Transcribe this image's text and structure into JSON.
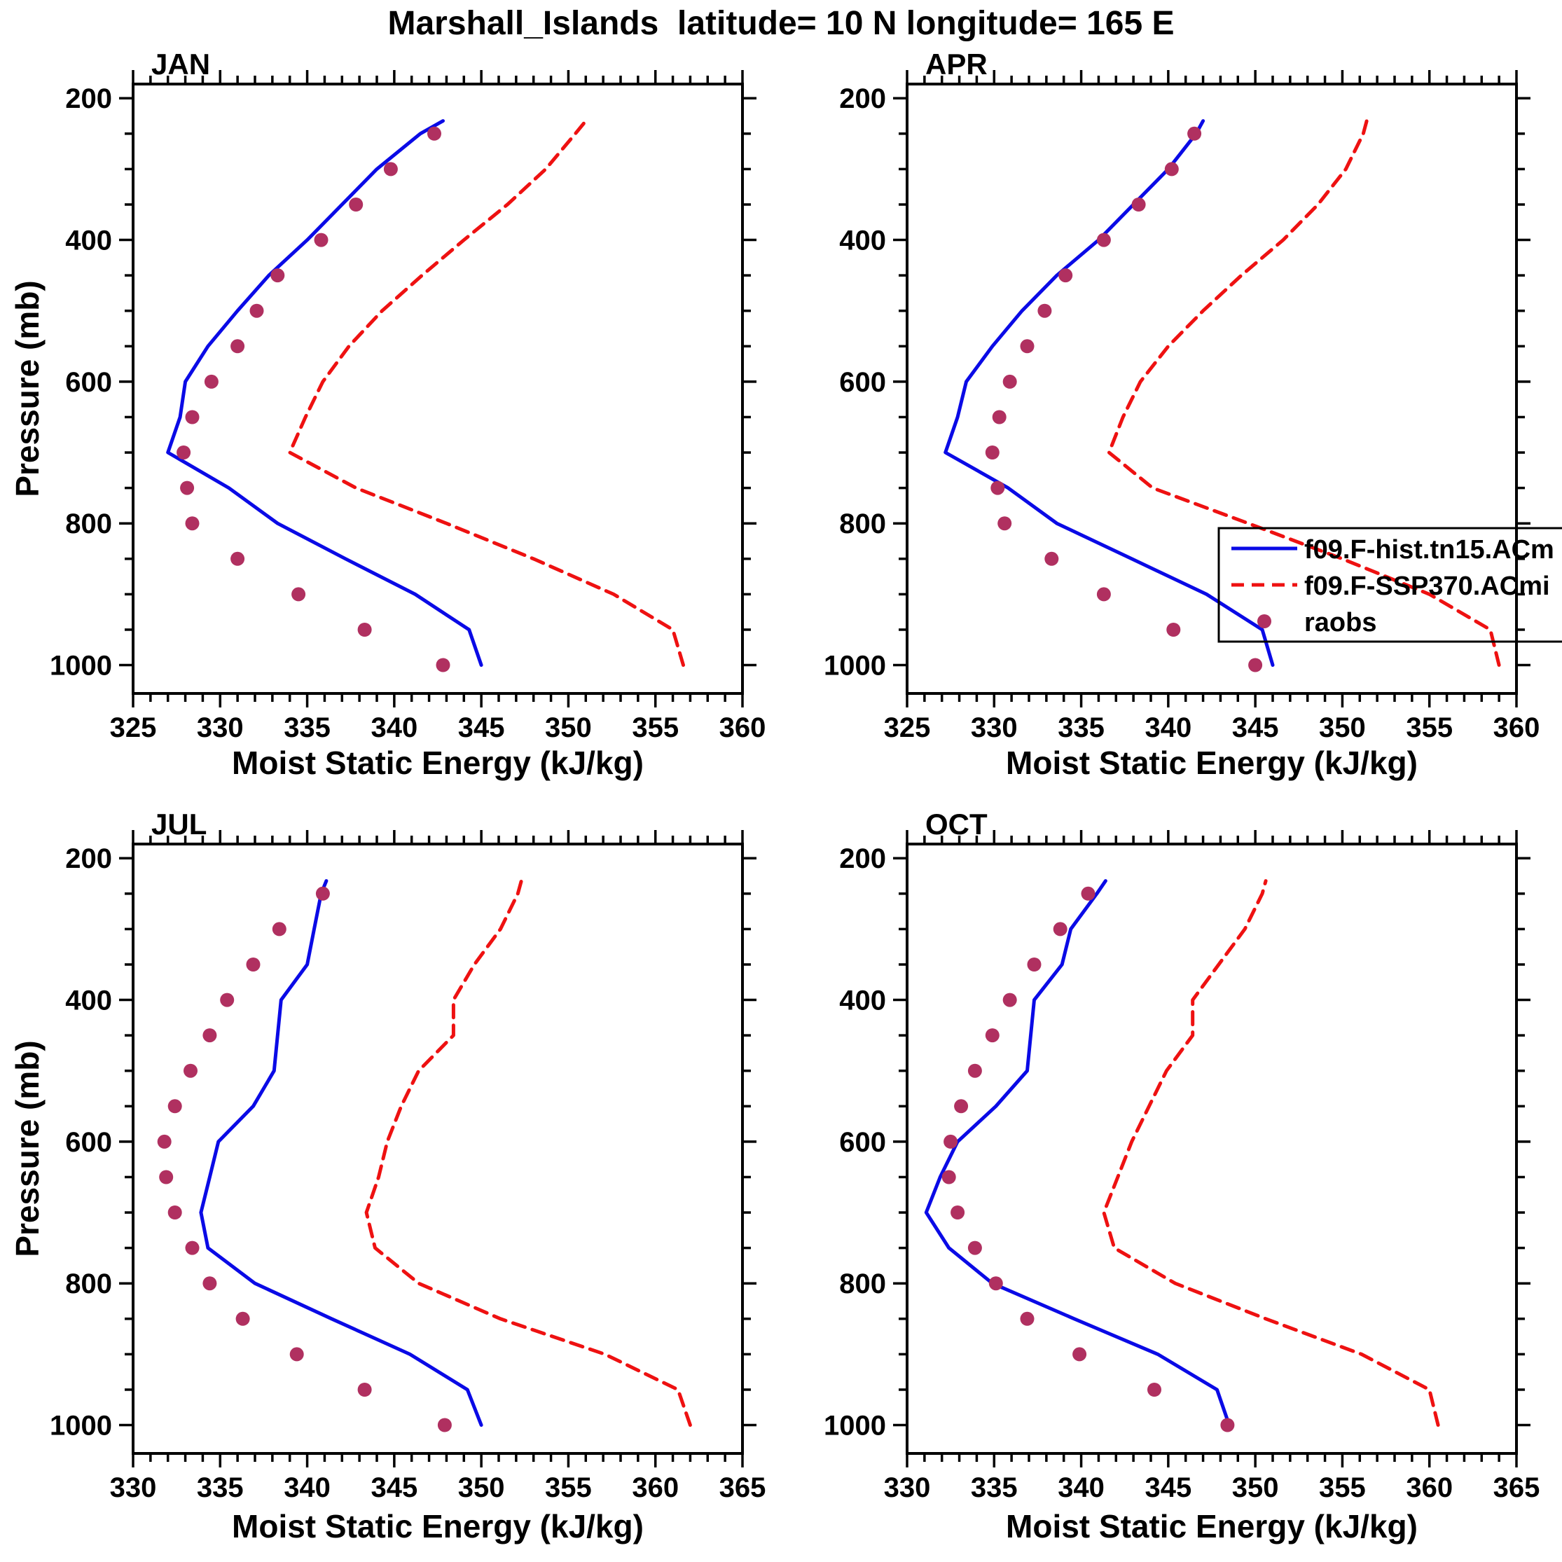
{
  "title": "Marshall_Islands  latitude= 10 N longitude= 165 E",
  "colors": {
    "hist": "#0A0AE6",
    "ssp": "#EE1111",
    "raobs": "#B03060",
    "axis": "#000000",
    "background": "#FFFFFF"
  },
  "axes": {
    "ylabel": "Pressure (mb)",
    "xlabel": "Moist Static Energy (kJ/kg)",
    "ylim": [
      200,
      1000
    ],
    "y_major_ticks": [
      200,
      400,
      600,
      800,
      1000
    ],
    "y_minor_step": 50,
    "x_major_step": 5,
    "x_minor_step": 1,
    "y_axis_inverted": true
  },
  "legend": {
    "entries": [
      {
        "label": "f09.F-hist.tn15.ACm",
        "series": "hist",
        "style": "solid-line"
      },
      {
        "label": "f09.F-SSP370.ACmi",
        "series": "ssp",
        "style": "dashed-line"
      },
      {
        "label": "raobs",
        "series": "raobs",
        "style": "dot"
      }
    ]
  },
  "chart_data": [
    {
      "type": "line",
      "panel": "JAN",
      "xlim": [
        325,
        360
      ],
      "x_major_ticks": [
        325,
        330,
        335,
        340,
        345,
        350,
        355,
        360
      ],
      "pressure_levels": [
        1000,
        950,
        900,
        850,
        800,
        750,
        700,
        650,
        600,
        550,
        500,
        450,
        400,
        350,
        300,
        250,
        232
      ],
      "series": [
        {
          "name": "f09.F-hist.tn15.ACm",
          "style": "solid",
          "color": "hist",
          "values": [
            345.0,
            344.3,
            341.2,
            337.2,
            333.3,
            330.5,
            327.0,
            327.7,
            328.0,
            329.3,
            331.0,
            332.8,
            335.0,
            337.0,
            339.0,
            341.5,
            342.8
          ]
        },
        {
          "name": "f09.F-SSP370.ACmi",
          "style": "dashed",
          "color": "ssp",
          "values": [
            356.6,
            356.0,
            352.6,
            348.0,
            343.0,
            337.8,
            334.0,
            334.9,
            335.9,
            337.4,
            339.3,
            341.6,
            344.0,
            346.5,
            348.7,
            350.4,
            351.0
          ]
        },
        {
          "name": "raobs",
          "style": "dots",
          "color": "raobs",
          "values": [
            342.8,
            338.3,
            334.5,
            331.0,
            328.4,
            328.1,
            327.9,
            328.4,
            329.5,
            331.0,
            332.1,
            333.3,
            335.8,
            337.8,
            339.8,
            342.3,
            null
          ]
        }
      ]
    },
    {
      "type": "line",
      "panel": "APR",
      "xlim": [
        325,
        360
      ],
      "x_major_ticks": [
        325,
        330,
        335,
        340,
        345,
        350,
        355,
        360
      ],
      "pressure_levels": [
        1000,
        950,
        900,
        850,
        800,
        750,
        700,
        650,
        600,
        550,
        500,
        450,
        400,
        350,
        300,
        250,
        232
      ],
      "series": [
        {
          "name": "f09.F-hist.tn15.ACm",
          "style": "solid",
          "color": "hist",
          "values": [
            346.0,
            345.4,
            342.2,
            337.9,
            333.6,
            330.8,
            327.2,
            327.9,
            328.4,
            329.9,
            331.6,
            333.6,
            336.0,
            338.0,
            340.0,
            341.6,
            342.0
          ]
        },
        {
          "name": "f09.F-SSP370.ACmi",
          "style": "dashed",
          "color": "ssp",
          "values": [
            359.0,
            358.5,
            355.0,
            350.0,
            344.6,
            339.1,
            336.6,
            337.4,
            338.4,
            340.0,
            342.0,
            344.2,
            346.6,
            348.6,
            350.2,
            351.2,
            351.4
          ]
        },
        {
          "name": "raobs",
          "style": "dots",
          "color": "raobs",
          "values": [
            345.0,
            340.3,
            336.3,
            333.3,
            330.6,
            330.2,
            329.9,
            330.3,
            330.9,
            331.9,
            332.9,
            334.1,
            336.3,
            338.3,
            340.2,
            341.5,
            null
          ]
        }
      ]
    },
    {
      "type": "line",
      "panel": "JUL",
      "xlim": [
        330,
        365
      ],
      "x_major_ticks": [
        330,
        335,
        340,
        345,
        350,
        355,
        360,
        365
      ],
      "pressure_levels": [
        1000,
        950,
        900,
        850,
        800,
        750,
        700,
        650,
        600,
        550,
        500,
        450,
        400,
        350,
        300,
        250,
        232
      ],
      "series": [
        {
          "name": "f09.F-hist.tn15.ACm",
          "style": "solid",
          "color": "hist",
          "values": [
            350.0,
            349.2,
            345.9,
            341.4,
            337.0,
            334.3,
            333.9,
            334.4,
            334.9,
            336.9,
            338.1,
            338.3,
            338.5,
            340.0,
            340.4,
            340.8,
            341.1
          ]
        },
        {
          "name": "f09.F-SSP370.ACmi",
          "style": "dashed",
          "color": "ssp",
          "values": [
            362.0,
            361.3,
            357.1,
            351.1,
            346.4,
            343.9,
            343.4,
            344.1,
            344.6,
            345.4,
            346.4,
            348.4,
            348.4,
            349.6,
            351.1,
            352.1,
            352.3
          ]
        },
        {
          "name": "raobs",
          "style": "dots",
          "color": "raobs",
          "values": [
            347.9,
            343.3,
            339.4,
            336.3,
            334.4,
            333.4,
            332.4,
            331.9,
            331.8,
            332.4,
            333.3,
            334.4,
            335.4,
            336.9,
            338.4,
            340.9,
            null
          ]
        }
      ]
    },
    {
      "type": "line",
      "panel": "OCT",
      "xlim": [
        330,
        365
      ],
      "x_major_ticks": [
        330,
        335,
        340,
        345,
        350,
        355,
        360,
        365
      ],
      "pressure_levels": [
        1000,
        950,
        900,
        850,
        800,
        750,
        700,
        650,
        600,
        550,
        500,
        450,
        400,
        350,
        300,
        250,
        232
      ],
      "series": [
        {
          "name": "f09.F-hist.tn15.ACm",
          "style": "solid",
          "color": "hist",
          "values": [
            348.5,
            347.8,
            344.4,
            339.6,
            334.9,
            332.4,
            331.1,
            331.9,
            332.9,
            335.1,
            336.9,
            337.1,
            337.3,
            338.9,
            339.4,
            340.9,
            341.4
          ]
        },
        {
          "name": "f09.F-SSP370.ACmi",
          "style": "dashed",
          "color": "ssp",
          "values": [
            360.5,
            360.0,
            356.1,
            350.6,
            345.4,
            341.9,
            341.3,
            342.1,
            342.9,
            343.9,
            344.9,
            346.4,
            346.4,
            347.9,
            349.4,
            350.4,
            350.6
          ]
        },
        {
          "name": "raobs",
          "style": "dots",
          "color": "raobs",
          "values": [
            348.4,
            344.2,
            339.9,
            336.9,
            335.1,
            333.9,
            332.9,
            332.4,
            332.5,
            333.1,
            333.9,
            334.9,
            335.9,
            337.3,
            338.8,
            340.4,
            null
          ]
        }
      ]
    }
  ]
}
